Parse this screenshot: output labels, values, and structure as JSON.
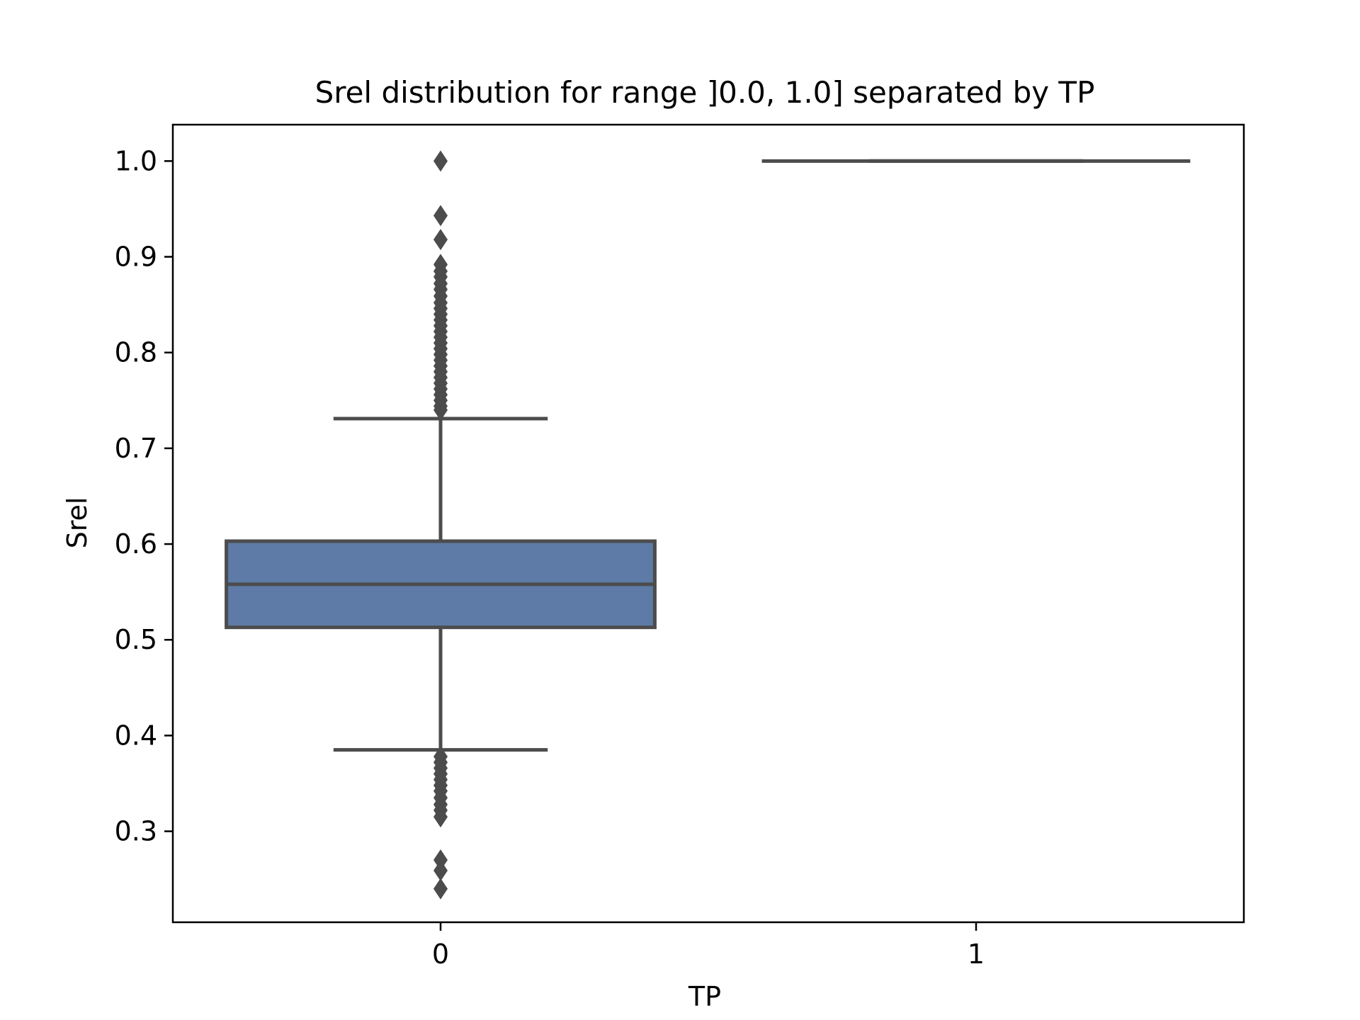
{
  "chart_data": {
    "type": "box",
    "title": "Srel distribution for range ]0.0, 1.0] separated by TP",
    "xlabel": "TP",
    "ylabel": "Srel",
    "categories": [
      "0",
      "1"
    ],
    "ylim": [
      0.205,
      1.038
    ],
    "yticks": [
      0.3,
      0.4,
      0.5,
      0.6,
      0.7,
      0.8,
      0.9,
      1.0
    ],
    "ytick_labels": [
      "0.3",
      "0.4",
      "0.5",
      "0.6",
      "0.7",
      "0.8",
      "0.9",
      "1.0"
    ],
    "grid": false,
    "boxes": [
      {
        "category": "0",
        "whisker_low": 0.385,
        "q1": 0.513,
        "median": 0.558,
        "q3": 0.603,
        "whisker_high": 0.731,
        "outliers": [
          1.0,
          0.943,
          0.918,
          0.892,
          0.885,
          0.879,
          0.872,
          0.866,
          0.859,
          0.852,
          0.846,
          0.84,
          0.834,
          0.828,
          0.822,
          0.816,
          0.81,
          0.804,
          0.798,
          0.792,
          0.786,
          0.78,
          0.774,
          0.768,
          0.762,
          0.756,
          0.75,
          0.744,
          0.74,
          0.378,
          0.372,
          0.366,
          0.36,
          0.354,
          0.348,
          0.342,
          0.335,
          0.328,
          0.322,
          0.315,
          0.27,
          0.259,
          0.24
        ]
      },
      {
        "category": "1",
        "whisker_low": 1.0,
        "q1": 1.0,
        "median": 1.0,
        "q3": 1.0,
        "whisker_high": 1.0,
        "outliers": []
      }
    ],
    "colors": {
      "box_fill": "#5d7ba6",
      "line": "#4c4c4c",
      "outlier": "#4c4c4c",
      "axes": "#000000"
    }
  }
}
